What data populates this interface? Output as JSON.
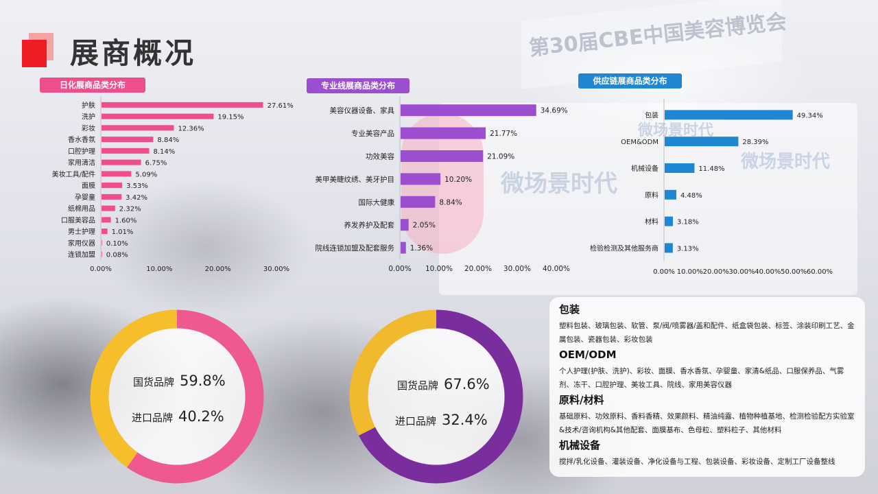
{
  "page_title": "展商概况",
  "tags": {
    "daily": "日化展商品类分布",
    "pro": "专业线展商品类分布",
    "supply": "供应链展商品类分布"
  },
  "colors": {
    "pink": "#EE4F8C",
    "purple": "#9B4FCF",
    "blue": "#1F86D3",
    "yellow": "#F5BE2A",
    "dark_purple": "#7A2E9E",
    "title_red": "#EE1C24"
  },
  "chart_data": [
    {
      "type": "bar",
      "orientation": "horizontal",
      "title": "",
      "categories": [
        "护肤",
        "洗护",
        "彩妆",
        "香水香氛",
        "口腔护理",
        "家用清洁",
        "美妆工具/配件",
        "面膜",
        "孕婴童",
        "纸棉用品",
        "口服美容品",
        "男士护理",
        "家用仪器",
        "连锁加盟"
      ],
      "values": [
        27.61,
        19.15,
        12.36,
        8.84,
        8.14,
        6.75,
        5.09,
        3.53,
        3.42,
        2.32,
        1.6,
        1.01,
        0.1,
        0.08
      ],
      "value_labels": [
        "27.61%",
        "19.15%",
        "12.36%",
        "8.84%",
        "8.14%",
        "6.75%",
        "5.09%",
        "3.53%",
        "3.42%",
        "2.32%",
        "1.60%",
        "1.01%",
        "0.10%",
        "0.08%"
      ],
      "xlim": [
        0,
        30
      ],
      "ticks": [
        "0.00%",
        "10.00%",
        "20.00%",
        "30.00%"
      ],
      "color": "#EE4F8C"
    },
    {
      "type": "bar",
      "orientation": "horizontal",
      "title": "",
      "categories": [
        "美容仪器设备、家具",
        "专业美容产品",
        "功效美容",
        "美甲美睫纹绣、美牙护目",
        "国际大健康",
        "养发养护及配套",
        "院线连锁加盟及配套服务"
      ],
      "values": [
        34.69,
        21.77,
        21.09,
        10.2,
        8.84,
        2.05,
        1.36
      ],
      "value_labels": [
        "34.69%",
        "21.77%",
        "21.09%",
        "10.20%",
        "8.84%",
        "2.05%",
        "1.36%"
      ],
      "xlim": [
        0,
        40
      ],
      "ticks": [
        "0.00%",
        "10.00%",
        "20.00%",
        "30.00%",
        "40.00%"
      ],
      "color": "#9B4FCF"
    },
    {
      "type": "bar",
      "orientation": "horizontal",
      "title": "",
      "categories": [
        "包装",
        "OEM&ODM",
        "机械设备",
        "原料",
        "材料",
        "检验检测及其他服务商"
      ],
      "values": [
        49.34,
        28.39,
        11.48,
        4.48,
        3.18,
        3.13
      ],
      "value_labels": [
        "49.34%",
        "28.39%",
        "11.48%",
        "4.48%",
        "3.18%",
        "3.13%"
      ],
      "xlim": [
        0,
        60
      ],
      "ticks": [
        "0.00%",
        "10.00%",
        "20.00%",
        "30.00%",
        "40.00%",
        "50.00%",
        "60.00%"
      ],
      "color": "#1F86D3"
    },
    {
      "type": "pie",
      "style": "donut",
      "labels": [
        "国货品牌",
        "进口品牌"
      ],
      "values": [
        59.8,
        40.2
      ],
      "value_labels": [
        "59.8%",
        "40.2%"
      ],
      "colors": [
        "#EE5A8F",
        "#F5BE2A"
      ]
    },
    {
      "type": "pie",
      "style": "donut",
      "labels": [
        "国货品牌",
        "进口品牌"
      ],
      "values": [
        67.6,
        32.4
      ],
      "value_labels": [
        "67.6%",
        "32.4%"
      ],
      "colors": [
        "#7A2E9E",
        "#F0B92E"
      ]
    }
  ],
  "info": [
    {
      "heading": "包装",
      "body": "塑料包装、玻璃包装、软管、泵/阀/喷雾器/盖和配件、纸盒袋包装、标签、涂装印刷工艺、金属包装、瓷器包装、彩妆包装"
    },
    {
      "heading": "OEM/ODM",
      "body": "个人护理(护肤、洗护)、彩妆、面膜、香水香氛、孕婴童、家清&纸品、口服保养品、气雾剂、冻干、口腔护理、美妆工具、院线、家用美容仪器"
    },
    {
      "heading": "原料/材料",
      "body": "基础原料、功效原料、香料香精、效果颜料、精油纯露、植物种植基地、检测检验配方实验室&技术/咨询机构&其他配套、面膜基布、色母粒、塑料粒子、其他材料"
    },
    {
      "heading": "机械设备",
      "body": "搅拌/乳化设备、灌装设备、净化设备与工程、包装设备、彩妆设备、定制工厂设备整线"
    }
  ],
  "background_signage": {
    "banner": "第30届CBE中国美容博览会",
    "screen_1": "微场景时代",
    "screen_2": "微场景时代",
    "screen_3": "微场景时代"
  }
}
